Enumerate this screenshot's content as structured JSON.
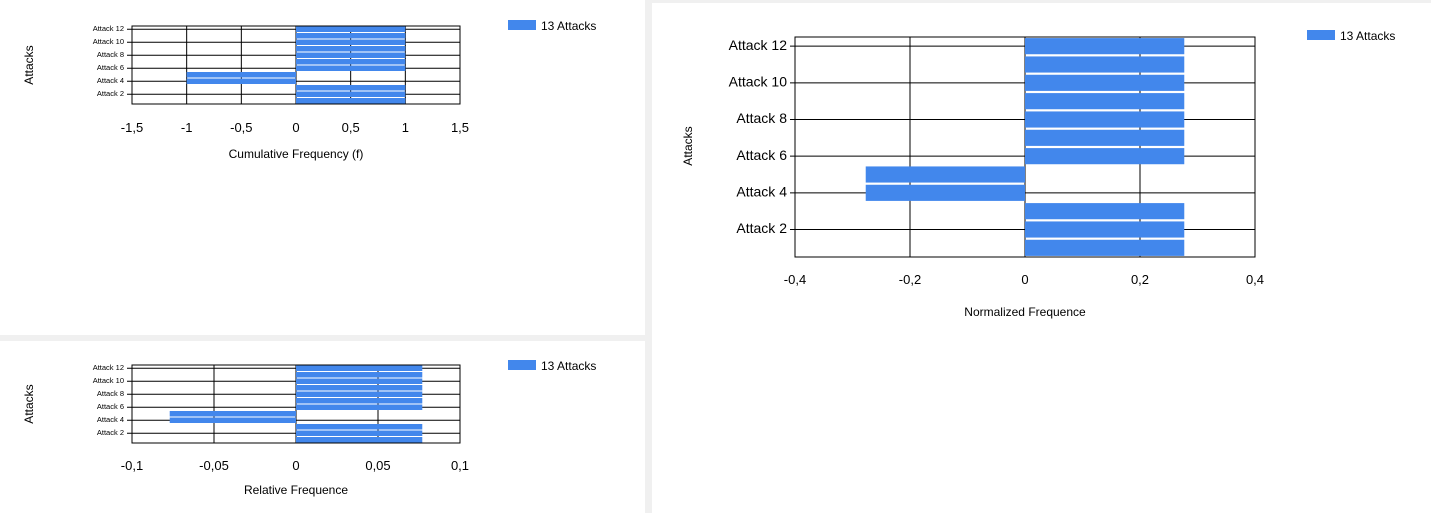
{
  "chart_data": [
    {
      "id": "cumulative",
      "type": "bar",
      "orientation": "horizontal",
      "categories": [
        "",
        "Attack 2",
        "",
        "Attack 4",
        "",
        "Attack 6",
        "",
        "Attack 8",
        "",
        "Attack 10",
        "",
        "Attack 12"
      ],
      "series": [
        {
          "name": "13 Attacks",
          "color": "#4287ec",
          "values": [
            1,
            1,
            1,
            -1,
            -1,
            1,
            1,
            1,
            1,
            1,
            1,
            1
          ]
        }
      ],
      "xlabel": "Cumulative Frequency (f)",
      "ylabel": "Attacks",
      "xlim": [
        -1.5,
        1.5
      ],
      "xticks": [
        -1.5,
        -1,
        -0.5,
        0,
        0.5,
        1,
        1.5
      ],
      "xtick_labels": [
        "-1,5",
        "-1",
        "-0,5",
        "0",
        "0,5",
        "1",
        "1,5"
      ],
      "grid": true,
      "legend": "top-right"
    },
    {
      "id": "relative",
      "type": "bar",
      "orientation": "horizontal",
      "categories": [
        "",
        "Attack 2",
        "",
        "Attack 4",
        "",
        "Attack 6",
        "",
        "Attack 8",
        "",
        "Attack 10",
        "",
        "Attack 12"
      ],
      "series": [
        {
          "name": "13 Attacks",
          "color": "#4287ec",
          "values": [
            0.077,
            0.077,
            0.077,
            -0.077,
            -0.077,
            0.077,
            0.077,
            0.077,
            0.077,
            0.077,
            0.077,
            0.077
          ]
        }
      ],
      "xlabel": "Relative Frequence",
      "ylabel": "Attacks",
      "xlim": [
        -0.1,
        0.1
      ],
      "xticks": [
        -0.1,
        -0.05,
        0,
        0.05,
        0.1
      ],
      "xtick_labels": [
        "-0,1",
        "-0,05",
        "0",
        "0,05",
        "0,1"
      ],
      "grid": true,
      "legend": "top-right"
    },
    {
      "id": "normalized",
      "type": "bar",
      "orientation": "horizontal",
      "categories": [
        "",
        "Attack 2",
        "",
        "Attack 4",
        "",
        "Attack 6",
        "",
        "Attack 8",
        "",
        "Attack 10",
        "",
        "Attack 12"
      ],
      "series": [
        {
          "name": "13 Attacks",
          "color": "#4287ec",
          "values": [
            0.277,
            0.277,
            0.277,
            -0.277,
            -0.277,
            0.277,
            0.277,
            0.277,
            0.277,
            0.277,
            0.277,
            0.277
          ]
        }
      ],
      "xlabel": "Normalized Frequence",
      "ylabel": "Attacks",
      "xlim": [
        -0.4,
        0.4
      ],
      "xticks": [
        -0.4,
        -0.2,
        0,
        0.2,
        0.4
      ],
      "xtick_labels": [
        "-0,4",
        "-0,2",
        "0",
        "0,2",
        "0,4"
      ],
      "grid": true,
      "legend": "top-right"
    }
  ]
}
